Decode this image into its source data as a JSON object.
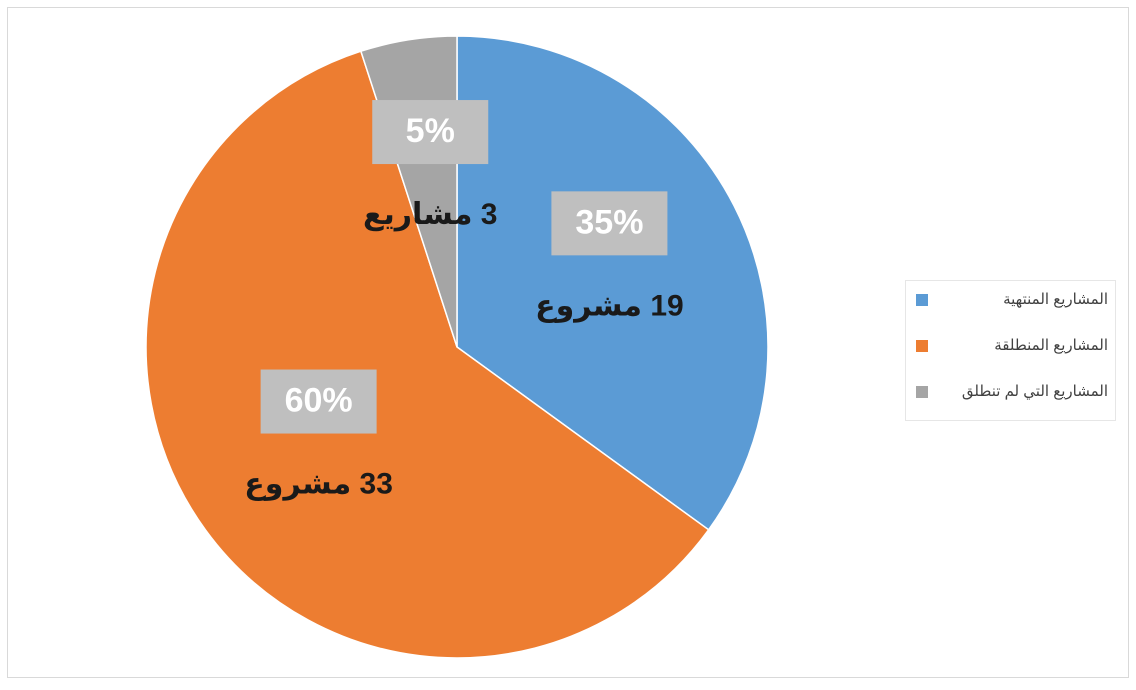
{
  "chart_data": {
    "type": "pie",
    "categories": [
      "المشاريع المنتهية",
      "المشاريع المنطلقة",
      "المشاريع التي لم تنطلق"
    ],
    "values": [
      35,
      60,
      5
    ],
    "value_labels": [
      "35%",
      "60%",
      "5%"
    ],
    "count_labels": [
      "19 مشروع",
      "33 مشروع",
      "3 مشاريع"
    ],
    "colors": [
      "#5b9bd5",
      "#ed7d31",
      "#a5a5a5"
    ],
    "legend": "right"
  }
}
